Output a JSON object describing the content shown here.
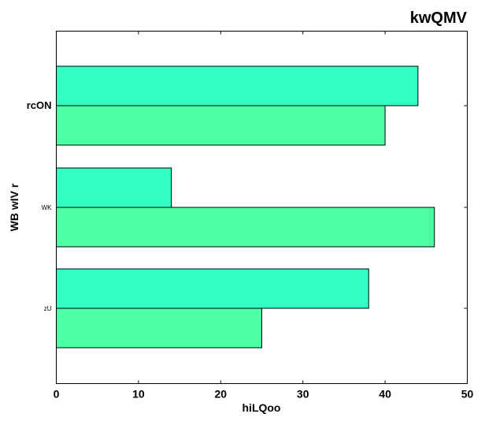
{
  "chart_data": {
    "type": "bar",
    "orientation": "horizontal",
    "title": "kwQMV",
    "xlabel": "hiLQoo",
    "ylabel": "WB  wIV r",
    "categories": [
      "rcON",
      "WK",
      "zU"
    ],
    "series": [
      {
        "values": [
          44,
          14,
          38
        ],
        "color": "#33ffc4"
      },
      {
        "values": [
          40,
          46,
          25
        ],
        "color": "#4dffa3"
      }
    ],
    "xlim": [
      0,
      50
    ],
    "xticks": [
      "0",
      "10",
      "20",
      "30",
      "40",
      "50"
    ],
    "grid": false,
    "legend": "none"
  }
}
